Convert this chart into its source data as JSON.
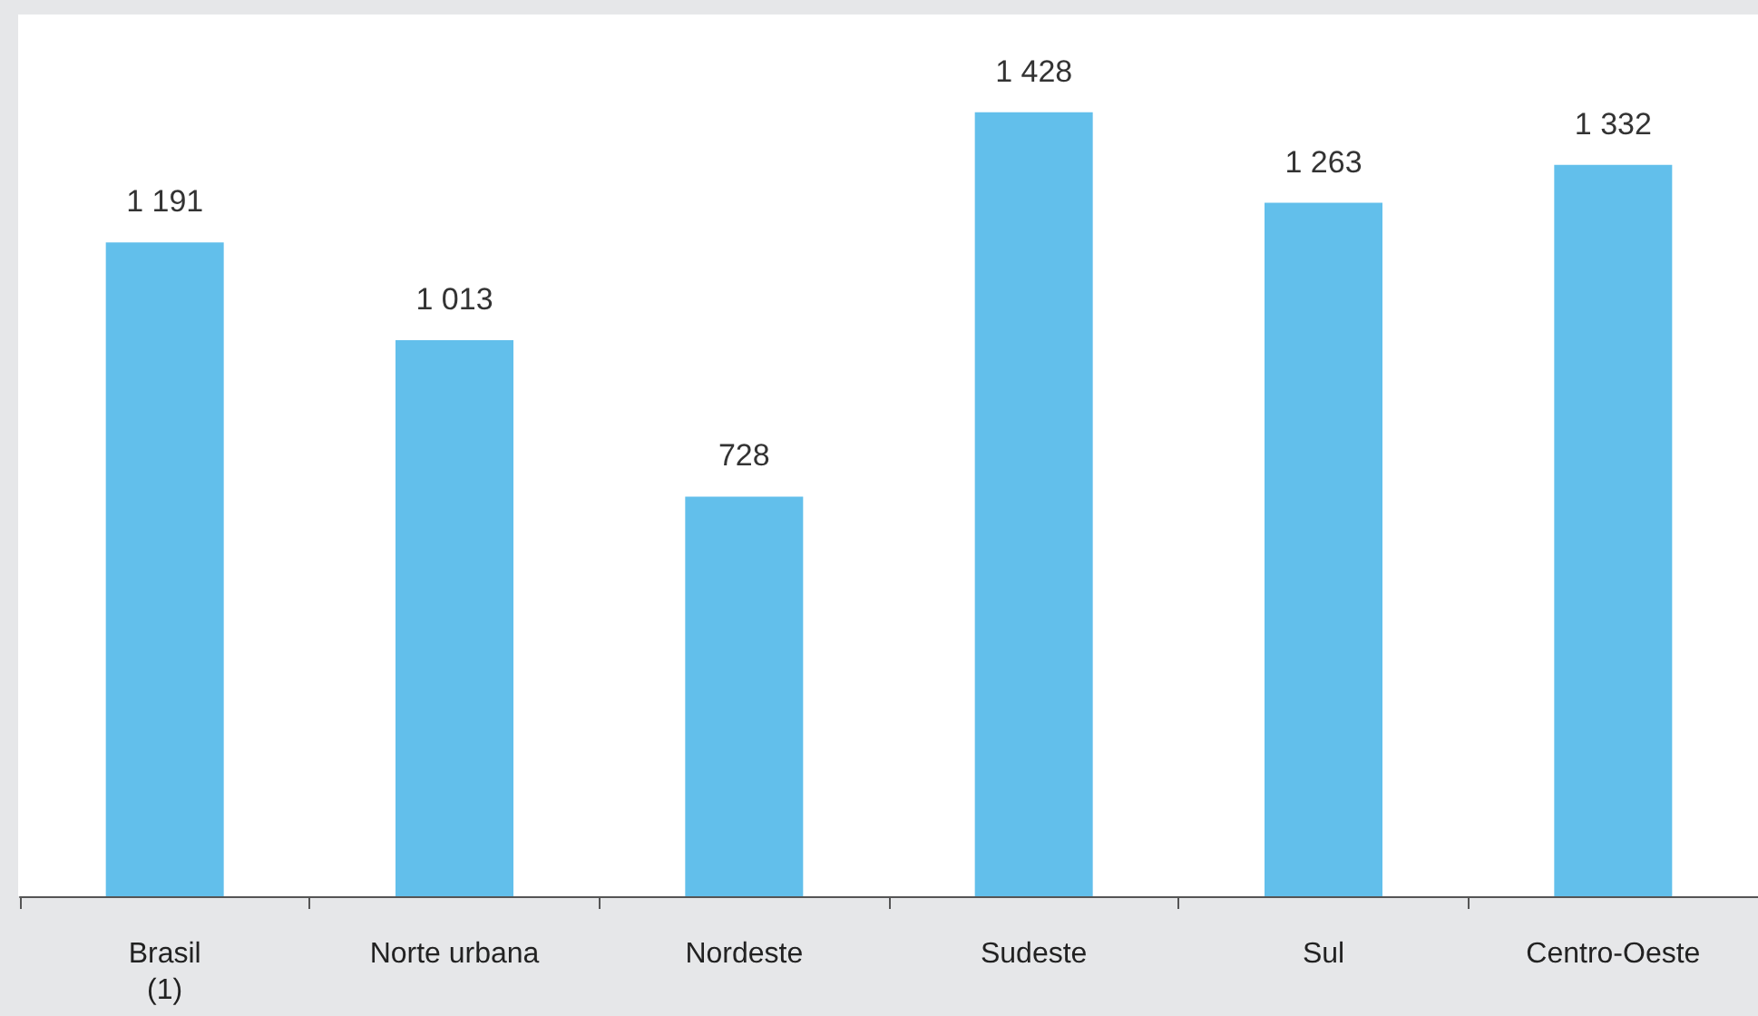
{
  "chart_data": {
    "type": "bar",
    "categories": [
      "Brasil\n(1)",
      "Norte urbana",
      "Nordeste",
      "Sudeste",
      "Sul",
      "Centro-Oeste"
    ],
    "values": [
      1191,
      1013,
      728,
      1428,
      1263,
      1332
    ],
    "value_labels": [
      "1 191",
      "1 013",
      "728",
      "1 428",
      "1 263",
      "1 332"
    ],
    "color": "#62bfeb",
    "tick_labels": "x"
  }
}
